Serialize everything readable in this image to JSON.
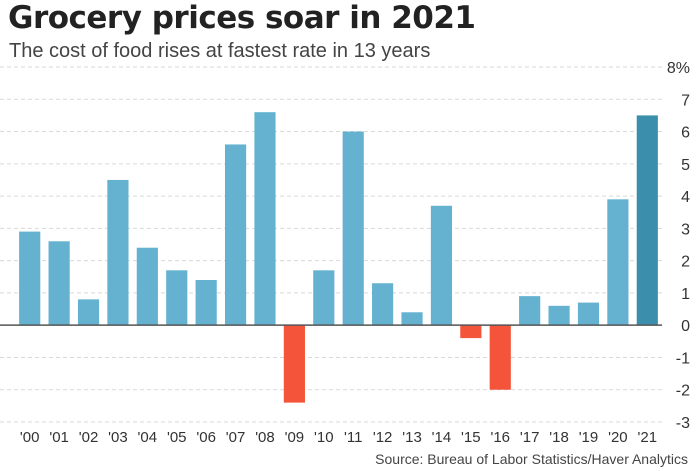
{
  "title": "Grocery prices soar in 2021",
  "subtitle": "The cost of food rises at fastest rate in 13 years",
  "source": "Source: Bureau of Labor Statistics/Haver Analytics",
  "colors": {
    "bar": "#65b2d0",
    "bar_highlight": "#3b8eac",
    "bar_negative": "#f4543a",
    "grid": "#d9d9d9",
    "zero_line": "#555555"
  },
  "chart_data": {
    "type": "bar",
    "title": "Grocery prices soar in 2021",
    "subtitle": "The cost of food rises at fastest rate in 13 years",
    "xlabel": "",
    "ylabel": "",
    "ylim": [
      -3,
      8
    ],
    "grid": true,
    "y_ticks": [
      {
        "value": 8,
        "label": "8%"
      },
      {
        "value": 7,
        "label": "7"
      },
      {
        "value": 6,
        "label": "6"
      },
      {
        "value": 5,
        "label": "5"
      },
      {
        "value": 4,
        "label": "4"
      },
      {
        "value": 3,
        "label": "3"
      },
      {
        "value": 2,
        "label": "2"
      },
      {
        "value": 1,
        "label": "1"
      },
      {
        "value": 0,
        "label": "0"
      },
      {
        "value": -1,
        "label": "-1"
      },
      {
        "value": -2,
        "label": "-2"
      },
      {
        "value": -3,
        "label": "-3"
      }
    ],
    "categories": [
      "'00",
      "'01",
      "'02",
      "'03",
      "'04",
      "'05",
      "'06",
      "'07",
      "'08",
      "'09",
      "'10",
      "'11",
      "'12",
      "'13",
      "'14",
      "'15",
      "'16",
      "'17",
      "'18",
      "'19",
      "'20",
      "'21"
    ],
    "values": [
      2.9,
      2.6,
      0.8,
      4.5,
      2.4,
      1.7,
      1.4,
      5.6,
      6.6,
      -2.4,
      1.7,
      6.0,
      1.3,
      0.4,
      3.7,
      -0.4,
      -2.0,
      0.9,
      0.6,
      0.7,
      3.9,
      6.5
    ],
    "highlight_index": 21
  }
}
